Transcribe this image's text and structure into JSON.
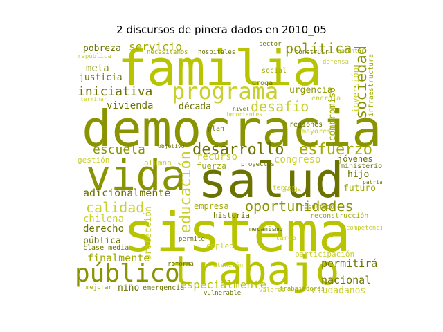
{
  "title": "2 discursos de pinera dados en 2010_05",
  "colors": {
    "c1": "#b8c400",
    "c2": "#8a9400",
    "c3": "#6b7200",
    "c4": "#c9cf2a",
    "c5": "#a0aa00"
  },
  "words": [
    {
      "text": "familia",
      "color": "c1"
    },
    {
      "text": "democracia",
      "color": "c2"
    },
    {
      "text": "salud",
      "color": "c3"
    },
    {
      "text": "sistema",
      "color": "c1"
    },
    {
      "text": "vida",
      "color": "c2"
    },
    {
      "text": "trabajo",
      "color": "c1"
    },
    {
      "text": "programa",
      "color": "c4"
    },
    {
      "text": "público",
      "color": "c2"
    },
    {
      "text": "oportunidades",
      "color": "c2"
    },
    {
      "text": "desarrollo",
      "color": "c3"
    },
    {
      "text": "esfuerzo",
      "color": "c5"
    },
    {
      "text": "educación",
      "color": "c4"
    },
    {
      "text": "sociedad",
      "color": "c2"
    },
    {
      "text": "política",
      "color": "c2"
    },
    {
      "text": "servicio",
      "color": "c5"
    },
    {
      "text": "iniciativa",
      "color": "c3"
    },
    {
      "text": "escuela",
      "color": "c2"
    },
    {
      "text": "desafío",
      "color": "c4"
    },
    {
      "text": "calidad",
      "color": "c4"
    },
    {
      "text": "adicionalmente",
      "color": "c3"
    },
    {
      "text": "especialmente",
      "color": "c1"
    },
    {
      "text": "finalmente",
      "color": "c5"
    },
    {
      "text": "nacional",
      "color": "c3"
    },
    {
      "text": "permitirá",
      "color": "c3"
    },
    {
      "text": "ciudadanos",
      "color": "c4"
    },
    {
      "text": "pobreza",
      "color": "c3"
    },
    {
      "text": "meta",
      "color": "c2"
    },
    {
      "text": "justicia",
      "color": "c3"
    },
    {
      "text": "vivienda",
      "color": "c3"
    },
    {
      "text": "década",
      "color": "c3"
    },
    {
      "text": "urgencia",
      "color": "c2"
    },
    {
      "text": "compromiso",
      "color": "c5"
    },
    {
      "text": "inversión",
      "color": "c4"
    },
    {
      "text": "infraestructura",
      "color": "c5"
    },
    {
      "text": "recurso",
      "color": "c4"
    },
    {
      "text": "congreso",
      "color": "c4"
    },
    {
      "text": "jóvenes",
      "color": "c3"
    },
    {
      "text": "hijo",
      "color": "c3"
    },
    {
      "text": "futuro",
      "color": "c5"
    },
    {
      "text": "empresa",
      "color": "c5"
    },
    {
      "text": "chilena",
      "color": "c4"
    },
    {
      "text": "derecho",
      "color": "c3"
    },
    {
      "text": "pública",
      "color": "c3"
    },
    {
      "text": "protección",
      "color": "c4"
    },
    {
      "text": "fuerza",
      "color": "c5"
    },
    {
      "text": "gestión",
      "color": "c4"
    },
    {
      "text": "alumno",
      "color": "c4"
    },
    {
      "text": "historia",
      "color": "c3"
    },
    {
      "text": "empleo",
      "color": "c4"
    },
    {
      "text": "niño",
      "color": "c3"
    },
    {
      "text": "clase media",
      "color": "c3"
    },
    {
      "text": "reconstrucción",
      "color": "c5"
    },
    {
      "text": "participación",
      "color": "c4"
    },
    {
      "text": "regiones",
      "color": "c3"
    },
    {
      "text": "ministerio",
      "color": "c3"
    },
    {
      "text": "energía",
      "color": "c4"
    },
    {
      "text": "social",
      "color": "c5"
    },
    {
      "text": "droga",
      "color": "c3"
    },
    {
      "text": "plan",
      "color": "c3"
    },
    {
      "text": "valores",
      "color": "c4"
    },
    {
      "text": "trabajadores",
      "color": "c5"
    },
    {
      "text": "mejorar",
      "color": "c5"
    },
    {
      "text": "emergencia",
      "color": "c3"
    },
    {
      "text": "tarea",
      "color": "c4"
    },
    {
      "text": "competencia",
      "color": "c4"
    },
    {
      "text": "atención",
      "color": "c4"
    },
    {
      "text": "república",
      "color": "c4"
    },
    {
      "text": "construir",
      "color": "c3"
    },
    {
      "text": "defensa",
      "color": "c4"
    },
    {
      "text": "sector",
      "color": "c3"
    },
    {
      "text": "hospitales",
      "color": "c3"
    },
    {
      "text": "necesitamos",
      "color": "c5"
    },
    {
      "text": "terminar",
      "color": "c4"
    },
    {
      "text": "importantes",
      "color": "c4"
    },
    {
      "text": "mecanismo",
      "color": "c3"
    },
    {
      "text": "reforma",
      "color": "c3"
    },
    {
      "text": "patria",
      "color": "c3"
    },
    {
      "text": "nivel",
      "color": "c3"
    },
    {
      "text": "mayores",
      "color": "c4"
    },
    {
      "text": "resultado",
      "color": "c5"
    },
    {
      "text": "permite",
      "color": "c3"
    },
    {
      "text": "vulnerable",
      "color": "c3"
    },
    {
      "text": "aumentar",
      "color": "c5"
    },
    {
      "text": "tercer",
      "color": "c4"
    },
    {
      "text": "objetivo",
      "color": "c3"
    },
    {
      "text": "proyectos",
      "color": "c3"
    },
    {
      "text": "deuda",
      "color": "c4"
    }
  ]
}
